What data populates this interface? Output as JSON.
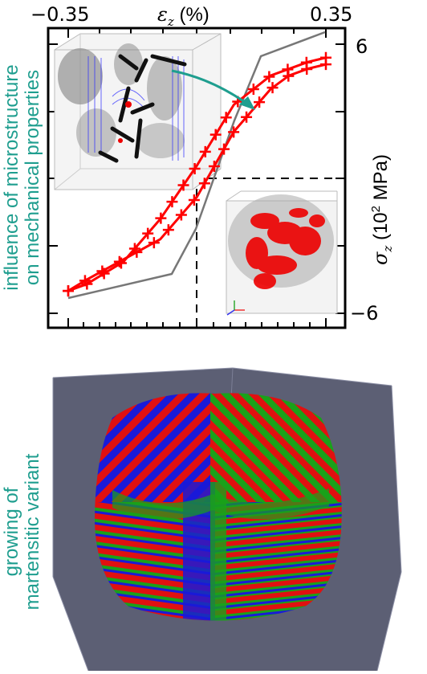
{
  "top_axis": {
    "left_tick": "−0.35",
    "right_tick": "0.35",
    "label_symbol": "ε",
    "label_sub": "z",
    "label_unit": " (%)"
  },
  "right_axis": {
    "top_tick": "6",
    "bottom_tick": "−6",
    "label_symbol": "σ",
    "label_sub": "z",
    "label_unit_pre": " (10",
    "label_unit_sup": "2",
    "label_unit_post": " MPa)"
  },
  "annotations": {
    "micro_line1": "influence of microstructure",
    "micro_line2": "on mechanical properties",
    "growth_line1": "growing of",
    "growth_line2": "martensitic variant"
  },
  "colors": {
    "teal": "#1f9e8f",
    "loop_red": "#ff0000",
    "envelope_gray": "#777777",
    "box_bg": "#5c5f74",
    "variant_red": "#e01010",
    "variant_green": "#1aa11a",
    "variant_blue": "#1a1ad8"
  },
  "chart_data": {
    "type": "line",
    "xlim": [
      -0.35,
      0.35
    ],
    "ylim": [
      -6,
      6
    ],
    "series": [
      {
        "values": [
          [
            -0.35,
            -5.0
          ],
          [
            -0.3,
            -4.5
          ],
          [
            -0.2,
            -3.6
          ],
          [
            -0.1,
            -2.7
          ],
          [
            0.0,
            -0.8
          ],
          [
            0.1,
            2.1
          ],
          [
            0.2,
            4.0
          ],
          [
            0.25,
            4.6
          ],
          [
            0.3,
            4.9
          ],
          [
            0.35,
            5.1
          ]
        ]
      },
      {
        "values": [
          [
            0.35,
            5.4
          ],
          [
            0.3,
            5.2
          ],
          [
            0.2,
            4.6
          ],
          [
            0.1,
            3.3
          ],
          [
            0.0,
            0.6
          ],
          [
            -0.1,
            -1.8
          ],
          [
            -0.2,
            -3.7
          ],
          [
            -0.3,
            -4.7
          ],
          [
            -0.35,
            -5.0
          ]
        ]
      },
      {
        "values": [
          [
            -0.35,
            -5.4
          ],
          [
            -0.08,
            -4.3
          ],
          [
            0.2,
            4.4
          ],
          [
            0.3,
            5.5
          ],
          [
            0.35,
            5.6
          ]
        ]
      }
    ]
  }
}
